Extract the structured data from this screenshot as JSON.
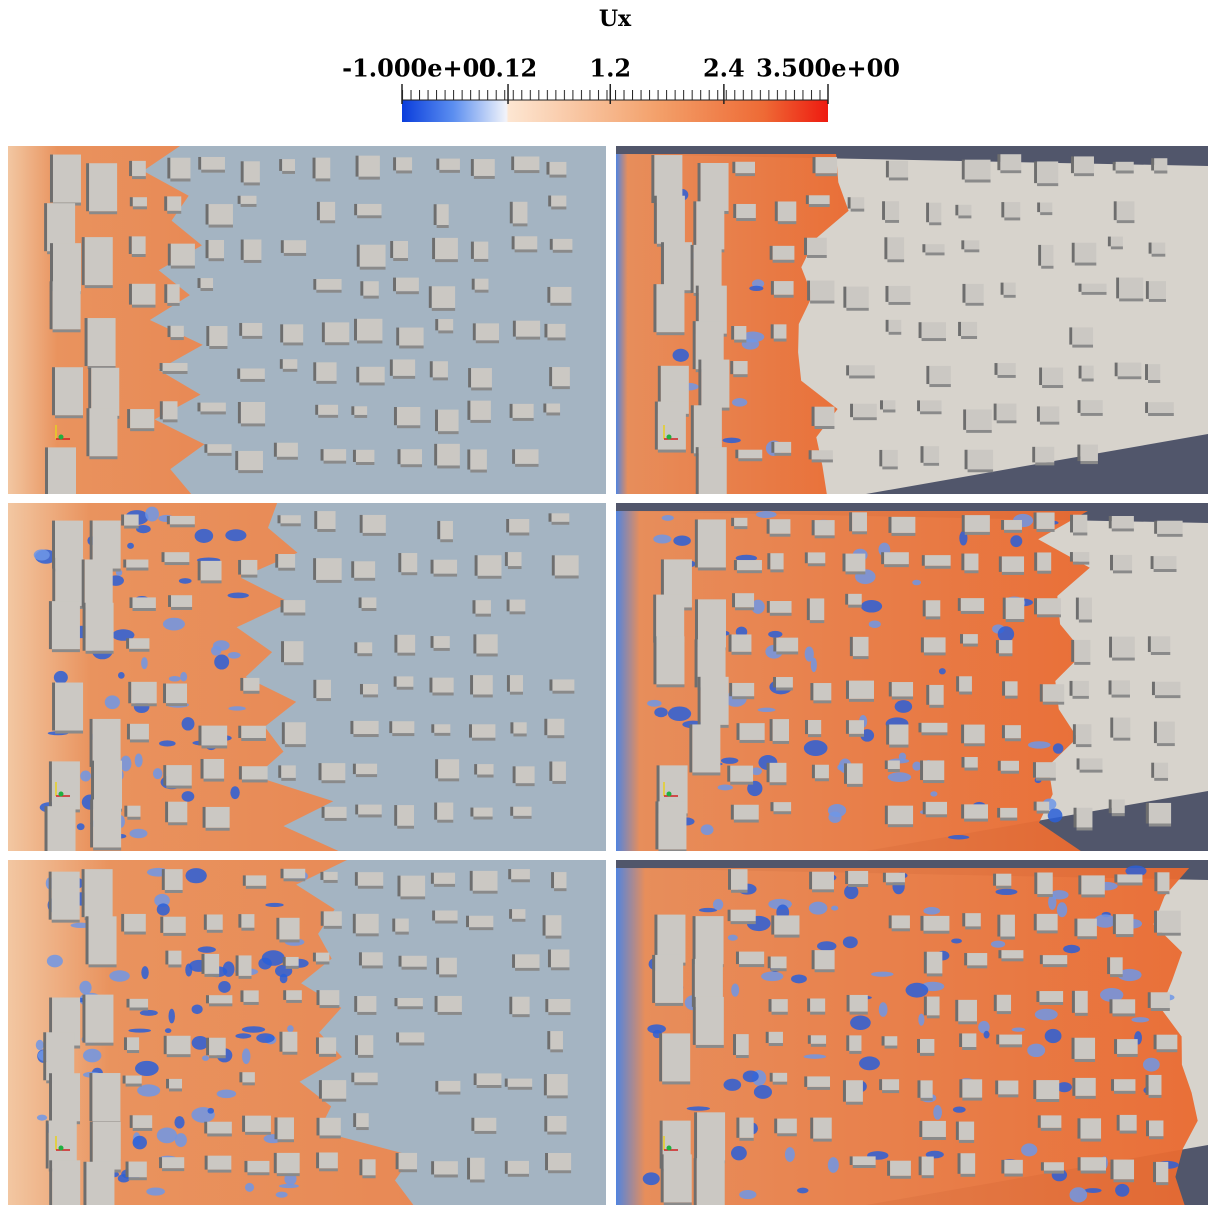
{
  "chart_data": {
    "type": "colorbar",
    "title": "Ux",
    "xlim": [
      -1,
      3.5
    ],
    "xticks": [
      {
        "value": -1,
        "label": "-1.000e+00"
      },
      0.12,
      1.2,
      2.4,
      {
        "value": 3.5,
        "label": "3.500e+00"
      }
    ]
  }
}
